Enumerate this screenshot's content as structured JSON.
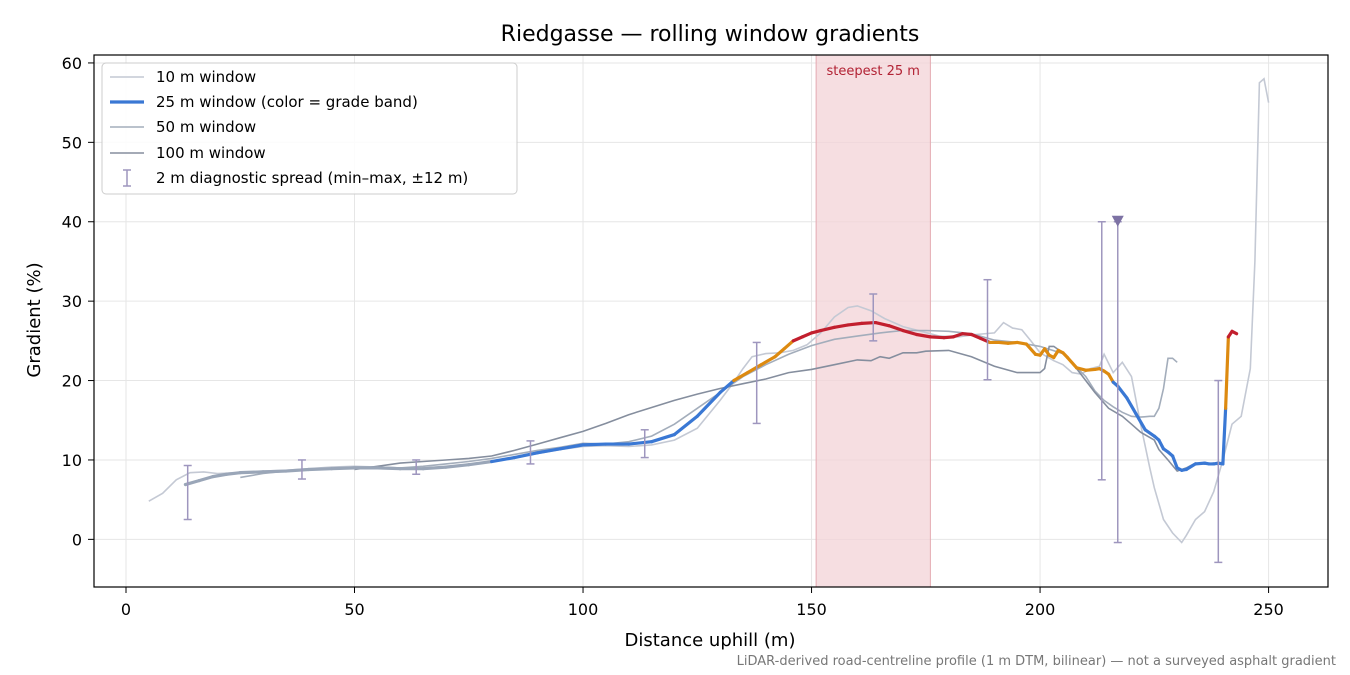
{
  "chart_data": {
    "type": "line",
    "title": "Riedgasse — rolling window gradients",
    "xlabel": "Distance uphill (m)",
    "ylabel": "Gradient (%)",
    "xlim": [
      -7,
      263
    ],
    "ylim": [
      -6,
      61
    ],
    "x_ticks": [
      0,
      50,
      100,
      150,
      200,
      250
    ],
    "y_ticks": [
      0,
      10,
      20,
      30,
      40,
      50,
      60
    ],
    "grid": true,
    "legend_position": "upper-left",
    "footnote": "LiDAR-derived road-centreline profile (1 m DTM, bilinear) — not a surveyed asphalt gradient",
    "highlight_band": {
      "x0": 151,
      "x1": 176,
      "label": "steepest 25 m",
      "color": "#f3d3d7"
    },
    "band_colors": {
      "low": "#3a78d4",
      "mid": "#dd8a10",
      "high": "#c21f2e"
    },
    "series": [
      {
        "name": "10 m window",
        "color": "#c4c9d4",
        "x": [
          5,
          8,
          11,
          14,
          17,
          20,
          25,
          30,
          35,
          40,
          45,
          50,
          55,
          60,
          65,
          70,
          75,
          80,
          85,
          90,
          95,
          100,
          105,
          110,
          115,
          120,
          125,
          130,
          133,
          135,
          137,
          140,
          143,
          146,
          149,
          152,
          155,
          158,
          160,
          163,
          166,
          170,
          174,
          178,
          182,
          186,
          190,
          192,
          194,
          196,
          198,
          200,
          203,
          205,
          207,
          209,
          211,
          213,
          214,
          216,
          218,
          220,
          222,
          224,
          225,
          227,
          229,
          231,
          232,
          234,
          236,
          238,
          240,
          242,
          244,
          246,
          247,
          248,
          249,
          250
        ],
        "y": [
          4.8,
          5.8,
          7.5,
          8.4,
          8.5,
          8.3,
          8.4,
          8.6,
          8.7,
          8.9,
          9.1,
          9.2,
          9.1,
          9.0,
          8.9,
          9.1,
          9.4,
          9.8,
          10.3,
          10.8,
          11.3,
          11.7,
          11.8,
          11.7,
          11.9,
          12.5,
          14.0,
          17.5,
          19.8,
          21.5,
          23.0,
          23.4,
          23.5,
          23.8,
          24.5,
          26.0,
          28.0,
          29.2,
          29.4,
          28.8,
          27.8,
          26.8,
          26.2,
          25.6,
          25.5,
          25.8,
          26.0,
          27.3,
          26.6,
          26.4,
          25.0,
          23.5,
          22.5,
          22.0,
          21.0,
          20.8,
          21.5,
          21.8,
          23.3,
          21.0,
          22.3,
          20.5,
          14.5,
          9.0,
          6.5,
          2.5,
          0.8,
          -0.4,
          0.5,
          2.5,
          3.5,
          6.0,
          10.0,
          14.5,
          15.5,
          21.5,
          35.0,
          57.5,
          58.0,
          55.0
        ]
      },
      {
        "name": "25 m window (color = grade band)",
        "color": "#3a78d4",
        "x": [
          13,
          16,
          19,
          22,
          25,
          30,
          35,
          40,
          45,
          50,
          55,
          60,
          65,
          70,
          75,
          80,
          85,
          90,
          95,
          100,
          105,
          110,
          115,
          120,
          125,
          130,
          133,
          136,
          139,
          142,
          144,
          146,
          148,
          150,
          152,
          155,
          158,
          161,
          164,
          167,
          170,
          173,
          176,
          179,
          181,
          183,
          185,
          187,
          189,
          191,
          193,
          195,
          197,
          199,
          200,
          201,
          202,
          203,
          204,
          205,
          206,
          208,
          210,
          212,
          213,
          214,
          215,
          216,
          217,
          219,
          221,
          223,
          225,
          226,
          227,
          228,
          229,
          230,
          231,
          232,
          234,
          236,
          237,
          238,
          239,
          240,
          240.6,
          241.2,
          242,
          243
        ],
        "y": [
          6.9,
          7.4,
          7.9,
          8.2,
          8.4,
          8.5,
          8.6,
          8.8,
          8.9,
          9.0,
          9.0,
          8.9,
          8.9,
          9.1,
          9.4,
          9.8,
          10.3,
          10.9,
          11.4,
          11.9,
          12.0,
          12.0,
          12.3,
          13.2,
          15.5,
          18.5,
          20.0,
          21.0,
          22.0,
          23.0,
          24.0,
          25.0,
          25.5,
          26.0,
          26.3,
          26.7,
          27.0,
          27.2,
          27.3,
          26.9,
          26.3,
          25.8,
          25.5,
          25.4,
          25.5,
          25.9,
          25.8,
          25.3,
          24.8,
          24.8,
          24.7,
          24.8,
          24.6,
          23.3,
          23.2,
          24.0,
          23.2,
          22.9,
          23.8,
          23.5,
          22.9,
          21.6,
          21.3,
          21.4,
          21.5,
          21.2,
          20.8,
          19.8,
          19.3,
          17.8,
          15.8,
          13.8,
          13.0,
          12.5,
          11.4,
          11.0,
          10.5,
          9.0,
          8.7,
          8.8,
          9.5,
          9.6,
          9.5,
          9.5,
          9.6,
          9.5,
          16.5,
          25.5,
          26.2,
          25.9
        ]
      },
      {
        "name": "50 m window",
        "color": "#a3adbb",
        "x": [
          25,
          30,
          35,
          40,
          45,
          50,
          55,
          60,
          65,
          70,
          75,
          80,
          85,
          90,
          95,
          100,
          105,
          110,
          115,
          120,
          125,
          130,
          135,
          140,
          145,
          150,
          155,
          160,
          165,
          170,
          175,
          180,
          185,
          190,
          195,
          200,
          205,
          210,
          212,
          214,
          216,
          218,
          220,
          222,
          224,
          225,
          226,
          227,
          228,
          229,
          230
        ],
        "y": [
          7.8,
          8.3,
          8.6,
          8.8,
          8.9,
          9.1,
          9.1,
          9.0,
          9.2,
          9.5,
          9.8,
          10.2,
          10.7,
          11.2,
          11.6,
          12.1,
          12.0,
          12.3,
          13.0,
          14.5,
          16.5,
          18.5,
          20.5,
          22.0,
          23.3,
          24.4,
          25.2,
          25.6,
          26.0,
          26.3,
          26.3,
          26.2,
          25.9,
          25.1,
          24.8,
          24.3,
          23.4,
          20.5,
          18.7,
          17.5,
          16.7,
          16.0,
          15.5,
          15.4,
          15.5,
          15.5,
          16.5,
          19.0,
          22.8,
          22.8,
          22.3
        ]
      },
      {
        "name": "100 m window",
        "color": "#858e9e",
        "x": [
          50,
          55,
          60,
          65,
          70,
          75,
          80,
          85,
          90,
          95,
          100,
          105,
          110,
          115,
          120,
          125,
          130,
          135,
          140,
          145,
          150,
          155,
          160,
          163,
          165,
          167,
          170,
          173,
          175,
          180,
          185,
          190,
          195,
          198,
          200,
          201,
          202,
          203,
          205,
          208,
          210,
          212,
          215,
          218,
          220,
          222,
          225,
          226,
          228,
          230,
          232,
          234,
          236,
          238,
          239,
          240
        ],
        "y": [
          8.8,
          9.2,
          9.6,
          9.8,
          10.0,
          10.2,
          10.5,
          11.2,
          12.0,
          12.8,
          13.6,
          14.6,
          15.7,
          16.6,
          17.5,
          18.3,
          19.0,
          19.6,
          20.2,
          21.0,
          21.4,
          22.0,
          22.6,
          22.5,
          23.0,
          22.8,
          23.5,
          23.5,
          23.7,
          23.8,
          23.0,
          21.8,
          21.0,
          21.0,
          21.0,
          21.5,
          24.3,
          24.3,
          23.5,
          21.5,
          20.0,
          18.5,
          16.5,
          15.5,
          14.5,
          13.5,
          12.5,
          11.3,
          10.0,
          8.6,
          9.0,
          9.6,
          9.5,
          9.6,
          9.4,
          9.8
        ]
      }
    ],
    "diagnostic_spread": {
      "name": "2 m diagnostic spread (min–max, ±12 m)",
      "color": "#9e96be",
      "x": [
        13.5,
        38.5,
        63.5,
        88.5,
        113.5,
        138,
        163.5,
        188.5,
        213.5,
        217,
        239
      ],
      "min": [
        2.5,
        7.6,
        8.2,
        9.5,
        10.3,
        14.6,
        25.0,
        20.1,
        7.5,
        -0.4,
        -2.9
      ],
      "max": [
        9.3,
        10.0,
        10.0,
        12.4,
        13.8,
        24.8,
        30.9,
        32.7,
        40.0,
        40.0,
        20.0
      ],
      "clipped_marker_x": 217
    }
  }
}
